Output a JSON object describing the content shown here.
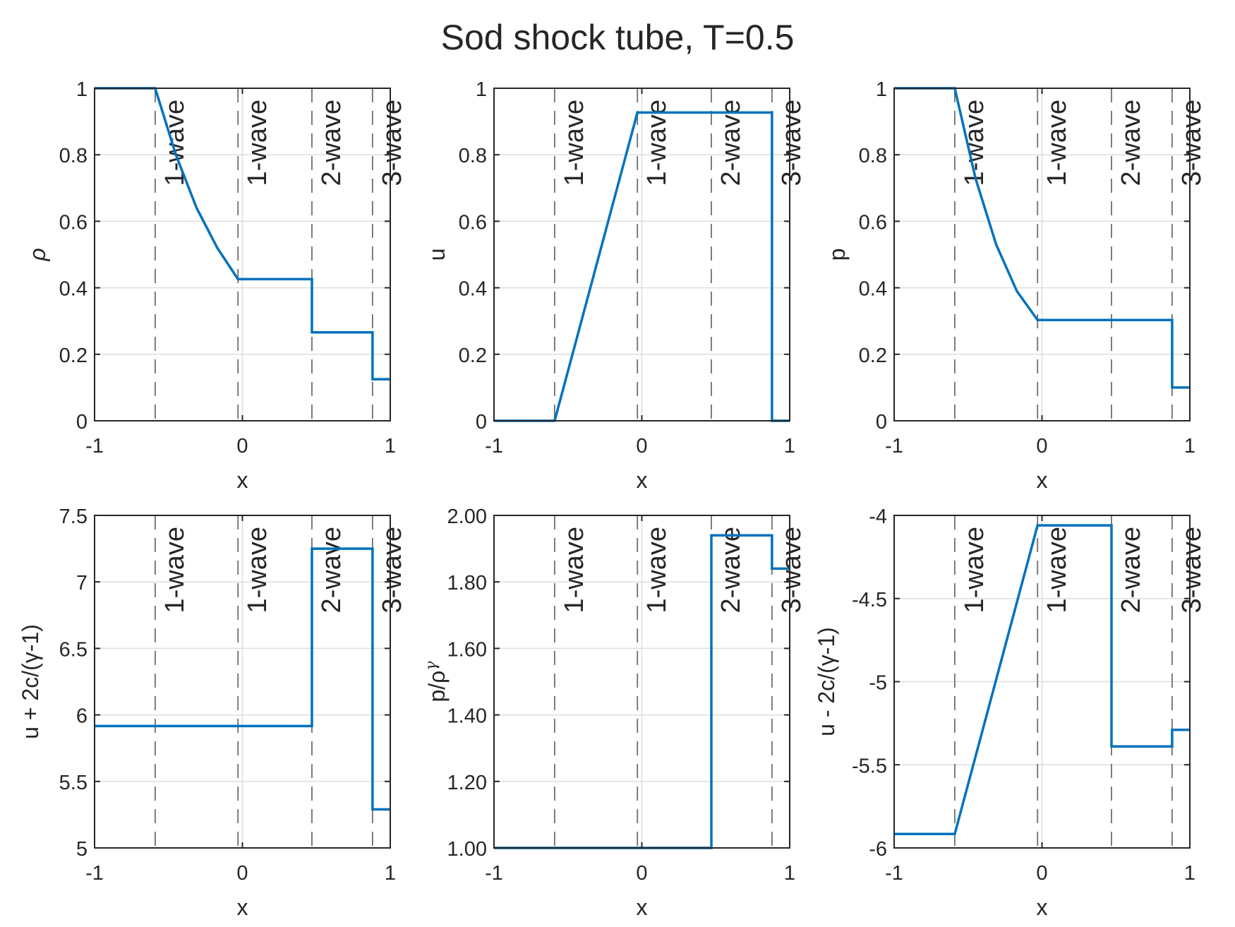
{
  "figure_title": "Sod shock tube, T=0.5",
  "colors": {
    "series": "#0072BD",
    "wave_line": "#6e6e6e",
    "grid": "#dedede",
    "axes": "#262626"
  },
  "chart_data": [
    {
      "type": "line",
      "xlabel": "x",
      "ylabel": "ρ",
      "ylabel_style": "italic-greek",
      "xlim": [
        -1,
        1
      ],
      "ylim": [
        0,
        1
      ],
      "xticks": [
        -1,
        0,
        1
      ],
      "xticklabels": [
        "-1",
        "0",
        "1"
      ],
      "yticks": [
        0,
        0.2,
        0.4,
        0.6,
        0.8,
        1
      ],
      "yticklabels": [
        "0",
        "0.2",
        "0.4",
        "0.6",
        "0.8",
        "1"
      ],
      "grid": true,
      "wave_lines": [
        {
          "x": -0.59,
          "label": "1-wave"
        },
        {
          "x": -0.03,
          "label": "1-wave"
        },
        {
          "x": 0.47,
          "label": "2-wave"
        },
        {
          "x": 0.88,
          "label": "3-wave"
        }
      ],
      "series": [
        {
          "x": [
            -1,
            -0.59,
            -0.45,
            -0.31,
            -0.17,
            -0.03,
            0.47,
            0.47,
            0.88,
            0.88,
            1
          ],
          "y": [
            1,
            1,
            0.8,
            0.64,
            0.52,
            0.426,
            0.426,
            0.266,
            0.266,
            0.125,
            0.125
          ]
        }
      ]
    },
    {
      "type": "line",
      "xlabel": "x",
      "ylabel": "u",
      "xlim": [
        -1,
        1
      ],
      "ylim": [
        0,
        1
      ],
      "xticks": [
        -1,
        0,
        1
      ],
      "xticklabels": [
        "-1",
        "0",
        "1"
      ],
      "yticks": [
        0,
        0.2,
        0.4,
        0.6,
        0.8,
        1
      ],
      "yticklabels": [
        "0",
        "0.2",
        "0.4",
        "0.6",
        "0.8",
        "1"
      ],
      "grid": true,
      "wave_lines": [
        {
          "x": -0.59,
          "label": "1-wave"
        },
        {
          "x": -0.03,
          "label": "1-wave"
        },
        {
          "x": 0.47,
          "label": "2-wave"
        },
        {
          "x": 0.88,
          "label": "3-wave"
        }
      ],
      "series": [
        {
          "x": [
            -1,
            -0.59,
            -0.03,
            0.88,
            0.88,
            1
          ],
          "y": [
            0,
            0,
            0.927,
            0.927,
            0,
            0
          ]
        }
      ]
    },
    {
      "type": "line",
      "xlabel": "x",
      "ylabel": "p",
      "xlim": [
        -1,
        1
      ],
      "ylim": [
        0,
        1
      ],
      "xticks": [
        -1,
        0,
        1
      ],
      "xticklabels": [
        "-1",
        "0",
        "1"
      ],
      "yticks": [
        0,
        0.2,
        0.4,
        0.6,
        0.8,
        1
      ],
      "yticklabels": [
        "0",
        "0.2",
        "0.4",
        "0.6",
        "0.8",
        "1"
      ],
      "grid": true,
      "wave_lines": [
        {
          "x": -0.59,
          "label": "1-wave"
        },
        {
          "x": -0.03,
          "label": "1-wave"
        },
        {
          "x": 0.47,
          "label": "2-wave"
        },
        {
          "x": 0.88,
          "label": "3-wave"
        }
      ],
      "series": [
        {
          "x": [
            -1,
            -0.59,
            -0.45,
            -0.31,
            -0.17,
            -0.03,
            0.88,
            0.88,
            1
          ],
          "y": [
            1,
            1,
            0.73,
            0.53,
            0.39,
            0.303,
            0.303,
            0.1,
            0.1
          ]
        }
      ]
    },
    {
      "type": "line",
      "xlabel": "x",
      "ylabel": "u + 2c/(γ-1)",
      "xlim": [
        -1,
        1
      ],
      "ylim": [
        5,
        7.5
      ],
      "xticks": [
        -1,
        0,
        1
      ],
      "xticklabels": [
        "-1",
        "0",
        "1"
      ],
      "yticks": [
        5,
        5.5,
        6,
        6.5,
        7,
        7.5
      ],
      "yticklabels": [
        "5",
        "5.5",
        "6",
        "6.5",
        "7",
        "7.5"
      ],
      "grid": true,
      "wave_lines": [
        {
          "x": -0.59,
          "label": "1-wave"
        },
        {
          "x": -0.03,
          "label": "1-wave"
        },
        {
          "x": 0.47,
          "label": "2-wave"
        },
        {
          "x": 0.88,
          "label": "3-wave"
        }
      ],
      "series": [
        {
          "x": [
            -1,
            0.47,
            0.47,
            0.88,
            0.88,
            1
          ],
          "y": [
            5.916,
            5.916,
            7.25,
            7.25,
            5.29,
            5.29
          ]
        }
      ]
    },
    {
      "type": "line",
      "xlabel": "x",
      "ylabel": "p/ρ^γ",
      "ylabel_style": "power",
      "xlim": [
        -1,
        1
      ],
      "ylim": [
        1,
        2
      ],
      "xticks": [
        -1,
        0,
        1
      ],
      "xticklabels": [
        "-1",
        "0",
        "1"
      ],
      "yticks": [
        1,
        1.2,
        1.4,
        1.6,
        1.8,
        2
      ],
      "yticklabels": [
        "1.00",
        "1.20",
        "1.40",
        "1.60",
        "1.80",
        "2.00"
      ],
      "grid": true,
      "wave_lines": [
        {
          "x": -0.59,
          "label": "1-wave"
        },
        {
          "x": -0.03,
          "label": "1-wave"
        },
        {
          "x": 0.47,
          "label": "2-wave"
        },
        {
          "x": 0.88,
          "label": "3-wave"
        }
      ],
      "series": [
        {
          "x": [
            -1,
            0.47,
            0.47,
            0.88,
            0.88,
            1
          ],
          "y": [
            1,
            1,
            1.94,
            1.94,
            1.84,
            1.84
          ]
        }
      ]
    },
    {
      "type": "line",
      "xlabel": "x",
      "ylabel": "u - 2c/(γ-1)",
      "xlim": [
        -1,
        1
      ],
      "ylim": [
        -6,
        -4
      ],
      "xticks": [
        -1,
        0,
        1
      ],
      "xticklabels": [
        "-1",
        "0",
        "1"
      ],
      "yticks": [
        -6,
        -5.5,
        -5,
        -4.5,
        -4
      ],
      "yticklabels": [
        "-6",
        "-5.5",
        "-5",
        "-4.5",
        "-4"
      ],
      "grid": true,
      "wave_lines": [
        {
          "x": -0.59,
          "label": "1-wave"
        },
        {
          "x": -0.03,
          "label": "1-wave"
        },
        {
          "x": 0.47,
          "label": "2-wave"
        },
        {
          "x": 0.88,
          "label": "3-wave"
        }
      ],
      "series": [
        {
          "x": [
            -1,
            -0.59,
            -0.03,
            0.47,
            0.47,
            0.88,
            0.88,
            1
          ],
          "y": [
            -5.916,
            -5.916,
            -4.06,
            -4.06,
            -5.39,
            -5.39,
            -5.29,
            -5.29
          ]
        }
      ]
    }
  ]
}
